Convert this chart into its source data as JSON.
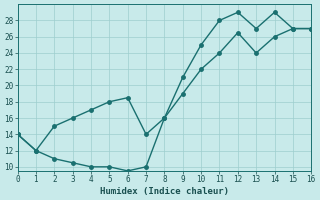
{
  "xlabel": "Humidex (Indice chaleur)",
  "background_color": "#c8eaea",
  "grid_color": "#9ecece",
  "line_color": "#1a7070",
  "series1_x": [
    0,
    1,
    2,
    3,
    4,
    5,
    6,
    7,
    8,
    9,
    10,
    11,
    12,
    13,
    14,
    15,
    16
  ],
  "series1_y": [
    14,
    12,
    11,
    10.5,
    10,
    10,
    9.5,
    10,
    16,
    21,
    25,
    28,
    29,
    27,
    29,
    27,
    27
  ],
  "series2_x": [
    0,
    1,
    2,
    3,
    4,
    5,
    6,
    7,
    8,
    9,
    10,
    11,
    12,
    13,
    14,
    15,
    16
  ],
  "series2_y": [
    14,
    12,
    15,
    16,
    17,
    18,
    18.5,
    14,
    16,
    19,
    22,
    24,
    26.5,
    24,
    26,
    27,
    27
  ],
  "xlim": [
    0,
    16
  ],
  "ylim": [
    9.5,
    30
  ],
  "yticks": [
    10,
    12,
    14,
    16,
    18,
    20,
    22,
    24,
    26,
    28
  ],
  "xticks": [
    0,
    1,
    2,
    3,
    4,
    5,
    6,
    7,
    8,
    9,
    10,
    11,
    12,
    13,
    14,
    15,
    16
  ],
  "linewidth": 1.0,
  "markersize": 2.5
}
